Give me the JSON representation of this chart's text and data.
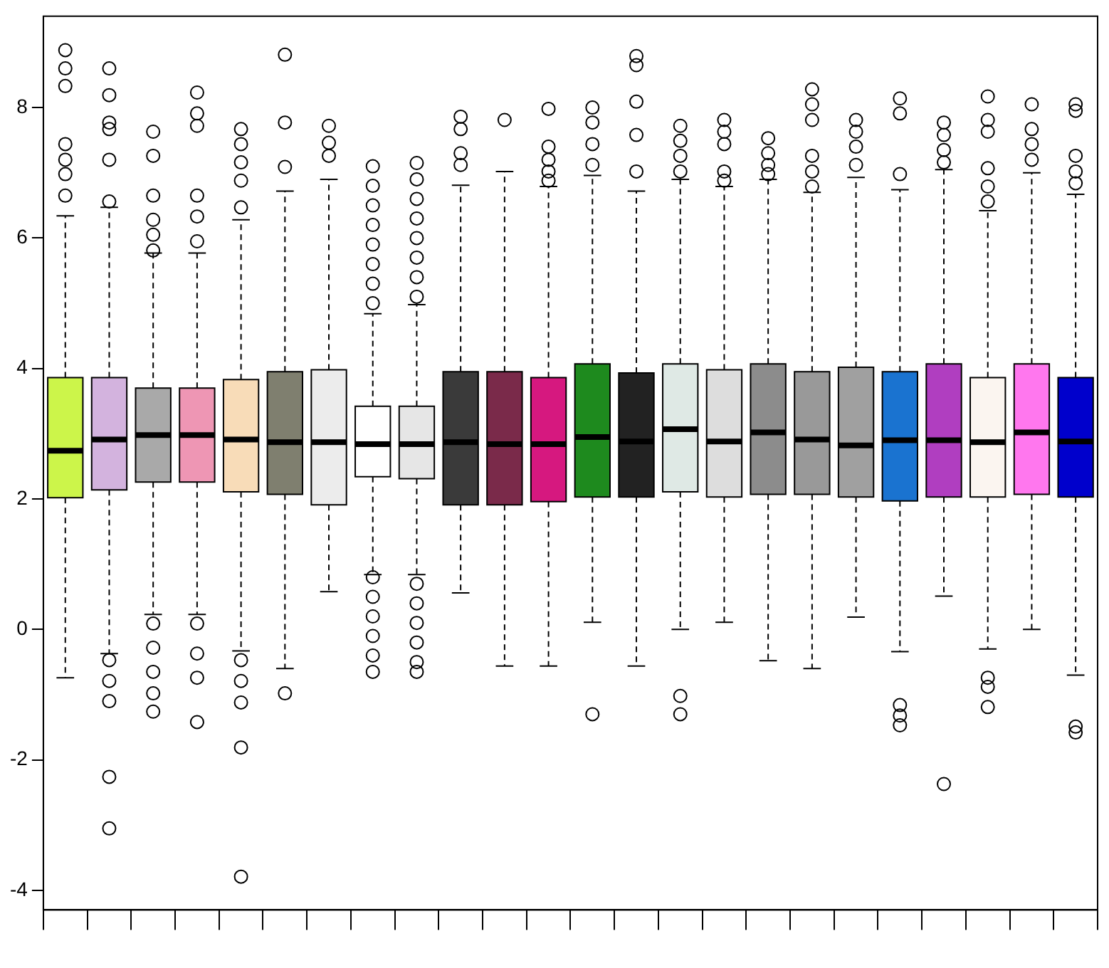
{
  "chart_data": {
    "type": "box",
    "categories": [
      null,
      null,
      null,
      null,
      null,
      null,
      null,
      null,
      null,
      null,
      null,
      null,
      null,
      null,
      null,
      null,
      null,
      null,
      null,
      null,
      null,
      null,
      null,
      null
    ],
    "colors": [
      "#ccf54a",
      "#d3b3de",
      "#a9a9a9",
      "#ee96b4",
      "#f8dcb8",
      "#7f7f6f",
      "#ececec",
      "#ffffff",
      "#e6e6e6",
      "#3a3a3a",
      "#7a2a4a",
      "#d6187f",
      "#1e8a1e",
      "#222222",
      "#dfe9e5",
      "#dddddd",
      "#8c8c8c",
      "#999999",
      "#a0a0a0",
      "#1a73d0",
      "#b03ec0",
      "#fbf5f0",
      "#ff77ee",
      "#0000cc"
    ],
    "boxes": [
      {
        "low": -0.74,
        "q1": 2.02,
        "median": 2.74,
        "q3": 3.86,
        "high": 6.34,
        "outliers": [
          8.88,
          8.6,
          8.33,
          7.44,
          7.2,
          6.98,
          6.65
        ]
      },
      {
        "low": -0.37,
        "q1": 2.14,
        "median": 2.91,
        "q3": 3.86,
        "high": 6.47,
        "outliers": [
          8.6,
          8.19,
          7.77,
          7.67,
          7.2,
          6.56,
          -0.47,
          -0.79,
          -1.1,
          -2.26,
          -3.05
        ]
      },
      {
        "low": 0.23,
        "q1": 2.26,
        "median": 2.98,
        "q3": 3.7,
        "high": 5.77,
        "outliers": [
          7.63,
          7.26,
          6.65,
          6.28,
          6.05,
          5.81,
          0.09,
          -0.28,
          -0.65,
          -0.98,
          -1.26
        ]
      },
      {
        "low": 0.23,
        "q1": 2.26,
        "median": 2.98,
        "q3": 3.7,
        "high": 5.77,
        "outliers": [
          8.23,
          7.91,
          7.72,
          6.65,
          6.33,
          5.95,
          0.09,
          -0.37,
          -0.74,
          -1.42
        ]
      },
      {
        "low": -0.33,
        "q1": 2.11,
        "median": 2.91,
        "q3": 3.83,
        "high": 6.28,
        "outliers": [
          7.67,
          7.44,
          7.16,
          6.88,
          6.47,
          -0.47,
          -0.79,
          -1.12,
          -1.81,
          -3.79
        ]
      },
      {
        "low": -0.6,
        "q1": 2.07,
        "median": 2.87,
        "q3": 3.95,
        "high": 6.72,
        "outliers": [
          8.81,
          7.77,
          7.09,
          -0.98
        ]
      },
      {
        "low": 0.58,
        "q1": 1.91,
        "median": 2.87,
        "q3": 3.98,
        "high": 6.9,
        "outliers": [
          7.72,
          7.46,
          7.26
        ]
      },
      {
        "low": 0.84,
        "q1": 2.34,
        "median": 2.84,
        "q3": 3.42,
        "high": 4.84,
        "outliers": [
          5.0,
          5.3,
          5.6,
          5.9,
          6.2,
          6.5,
          6.8,
          7.1,
          0.8,
          0.5,
          0.2,
          -0.1,
          -0.4,
          -0.65
        ]
      },
      {
        "low": 0.84,
        "q1": 2.31,
        "median": 2.84,
        "q3": 3.42,
        "high": 4.98,
        "outliers": [
          5.1,
          5.4,
          5.7,
          6.0,
          6.3,
          6.6,
          6.9,
          7.15,
          0.7,
          0.4,
          0.1,
          -0.2,
          -0.5,
          -0.65
        ]
      },
      {
        "low": 0.56,
        "q1": 1.91,
        "median": 2.87,
        "q3": 3.95,
        "high": 6.81,
        "outliers": [
          7.86,
          7.67,
          7.3,
          7.12
        ]
      },
      {
        "low": -0.56,
        "q1": 1.91,
        "median": 2.84,
        "q3": 3.95,
        "high": 7.02,
        "outliers": [
          7.81
        ]
      },
      {
        "low": -0.56,
        "q1": 1.96,
        "median": 2.84,
        "q3": 3.86,
        "high": 6.79,
        "outliers": [
          7.98,
          7.4,
          7.2,
          7.02,
          6.88
        ]
      },
      {
        "low": 0.11,
        "q1": 2.03,
        "median": 2.95,
        "q3": 4.07,
        "high": 6.96,
        "outliers": [
          8.0,
          7.77,
          7.44,
          7.12,
          -1.3
        ]
      },
      {
        "low": -0.56,
        "q1": 2.03,
        "median": 2.88,
        "q3": 3.93,
        "high": 6.72,
        "outliers": [
          8.79,
          8.65,
          8.09,
          7.58,
          7.02
        ]
      },
      {
        "low": 0,
        "q1": 2.11,
        "median": 3.07,
        "q3": 4.07,
        "high": 6.9,
        "outliers": [
          7.72,
          7.49,
          7.26,
          7.02,
          -1.02,
          -1.3
        ]
      },
      {
        "low": 0.11,
        "q1": 2.03,
        "median": 2.88,
        "q3": 3.98,
        "high": 6.79,
        "outliers": [
          7.81,
          7.63,
          7.44,
          7.02,
          6.88
        ]
      },
      {
        "low": -0.48,
        "q1": 2.07,
        "median": 3.02,
        "q3": 4.07,
        "high": 6.9,
        "outliers": [
          7.53,
          7.3,
          7.12,
          6.98
        ]
      },
      {
        "low": -0.6,
        "q1": 2.07,
        "median": 2.91,
        "q3": 3.95,
        "high": 6.7,
        "outliers": [
          8.28,
          8.05,
          7.81,
          7.26,
          7.02,
          6.79
        ]
      },
      {
        "low": 0.19,
        "q1": 2.03,
        "median": 2.82,
        "q3": 4.02,
        "high": 6.93,
        "outliers": [
          7.81,
          7.63,
          7.4,
          7.12
        ]
      },
      {
        "low": -0.34,
        "q1": 1.97,
        "median": 2.9,
        "q3": 3.95,
        "high": 6.74,
        "outliers": [
          8.14,
          7.91,
          6.98,
          -1.16,
          -1.32,
          -1.47
        ]
      },
      {
        "low": 0.51,
        "q1": 2.03,
        "median": 2.9,
        "q3": 4.07,
        "high": 7.05,
        "outliers": [
          7.77,
          7.58,
          7.35,
          7.16,
          -2.37
        ]
      },
      {
        "low": -0.3,
        "q1": 2.03,
        "median": 2.87,
        "q3": 3.86,
        "high": 6.42,
        "outliers": [
          8.17,
          7.81,
          7.63,
          7.07,
          6.79,
          6.56,
          -0.74,
          -0.88,
          -1.19
        ]
      },
      {
        "low": 0,
        "q1": 2.07,
        "median": 3.02,
        "q3": 4.07,
        "high": 7.0,
        "outliers": [
          8.05,
          7.67,
          7.44,
          7.2
        ]
      },
      {
        "low": -0.7,
        "q1": 2.03,
        "median": 2.88,
        "q3": 3.86,
        "high": 6.67,
        "outliers": [
          8.05,
          7.95,
          7.26,
          7.02,
          6.84,
          -1.49,
          -1.58
        ]
      }
    ],
    "ylim": [
      -4.3,
      9.4
    ],
    "yticks": [
      -4,
      -2,
      0,
      2,
      4,
      6,
      8
    ],
    "grid": false,
    "tick_labels": "y"
  }
}
